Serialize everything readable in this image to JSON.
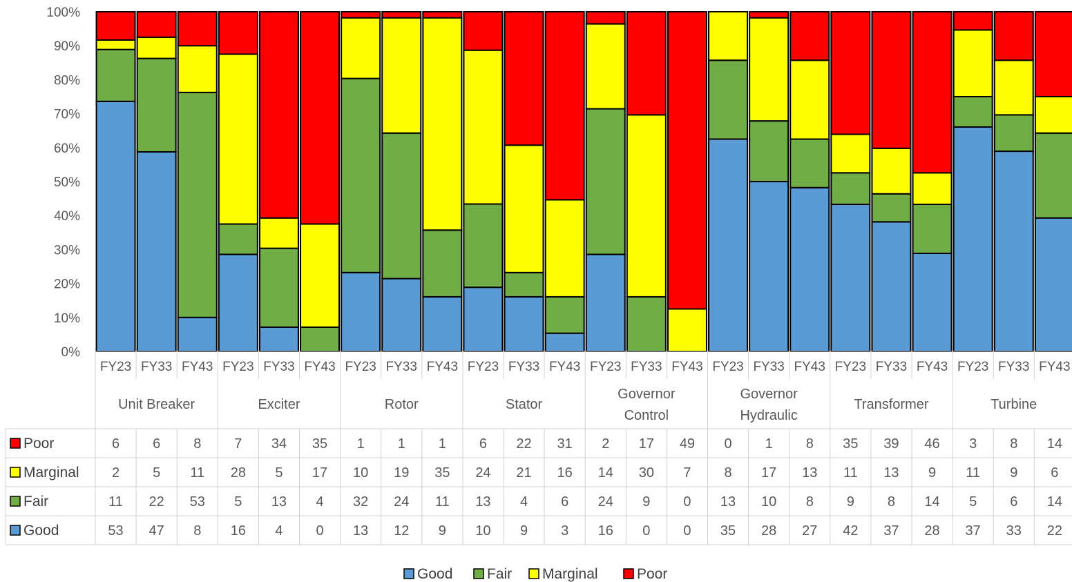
{
  "chart_data": {
    "type": "bar",
    "stacked": "percent",
    "y_ticks": [
      "0%",
      "10%",
      "20%",
      "30%",
      "40%",
      "50%",
      "60%",
      "70%",
      "80%",
      "90%",
      "100%"
    ],
    "ylim": [
      0,
      100
    ],
    "grid": false,
    "legend_position": "bottom",
    "groups": [
      {
        "name": "Unit Breaker",
        "lines": [
          "Unit Breaker"
        ],
        "categories": [
          "FY23",
          "FY33",
          "FY43"
        ]
      },
      {
        "name": "Exciter",
        "lines": [
          "Exciter"
        ],
        "categories": [
          "FY23",
          "FY33",
          "FY43"
        ]
      },
      {
        "name": "Rotor",
        "lines": [
          "Rotor"
        ],
        "categories": [
          "FY23",
          "FY33",
          "FY43"
        ]
      },
      {
        "name": "Stator",
        "lines": [
          "Stator"
        ],
        "categories": [
          "FY23",
          "FY33",
          "FY43"
        ]
      },
      {
        "name": "Governor Control",
        "lines": [
          "Governor",
          "Control"
        ],
        "categories": [
          "FY23",
          "FY33",
          "FY43"
        ]
      },
      {
        "name": "Governor Hydraulic",
        "lines": [
          "Governor",
          "Hydraulic"
        ],
        "categories": [
          "FY23",
          "FY33",
          "FY43"
        ]
      },
      {
        "name": "Transformer",
        "lines": [
          "Transformer"
        ],
        "categories": [
          "FY23",
          "FY33",
          "FY43"
        ]
      },
      {
        "name": "Turbine",
        "lines": [
          "Turbine"
        ],
        "categories": [
          "FY23",
          "FY33",
          "FY43"
        ]
      }
    ],
    "categories": [
      "FY23",
      "FY33",
      "FY43",
      "FY23",
      "FY33",
      "FY43",
      "FY23",
      "FY33",
      "FY43",
      "FY23",
      "FY33",
      "FY43",
      "FY23",
      "FY33",
      "FY43",
      "FY23",
      "FY33",
      "FY43",
      "FY23",
      "FY33",
      "FY43",
      "FY23",
      "FY33",
      "FY43"
    ],
    "series": [
      {
        "name": "Good",
        "color": "#5b9bd5",
        "values": [
          53,
          47,
          8,
          16,
          4,
          0,
          13,
          12,
          9,
          10,
          9,
          3,
          16,
          0,
          0,
          35,
          28,
          27,
          42,
          37,
          28,
          37,
          33,
          22
        ]
      },
      {
        "name": "Fair",
        "color": "#70ad47",
        "values": [
          11,
          22,
          53,
          5,
          13,
          4,
          32,
          24,
          11,
          13,
          4,
          6,
          24,
          9,
          0,
          13,
          10,
          8,
          9,
          8,
          14,
          5,
          6,
          14
        ]
      },
      {
        "name": "Marginal",
        "color": "#ffff00",
        "values": [
          2,
          5,
          11,
          28,
          5,
          17,
          10,
          19,
          35,
          24,
          21,
          16,
          14,
          30,
          7,
          8,
          17,
          13,
          11,
          13,
          9,
          11,
          9,
          6
        ]
      },
      {
        "name": "Poor",
        "color": "#ff0000",
        "values": [
          6,
          6,
          8,
          7,
          34,
          35,
          1,
          1,
          1,
          6,
          22,
          31,
          2,
          17,
          49,
          0,
          1,
          8,
          35,
          39,
          46,
          3,
          8,
          14
        ]
      }
    ],
    "table_row_order": [
      "Poor",
      "Marginal",
      "Fair",
      "Good"
    ],
    "legend_order": [
      "Good",
      "Fair",
      "Marginal",
      "Poor"
    ]
  }
}
